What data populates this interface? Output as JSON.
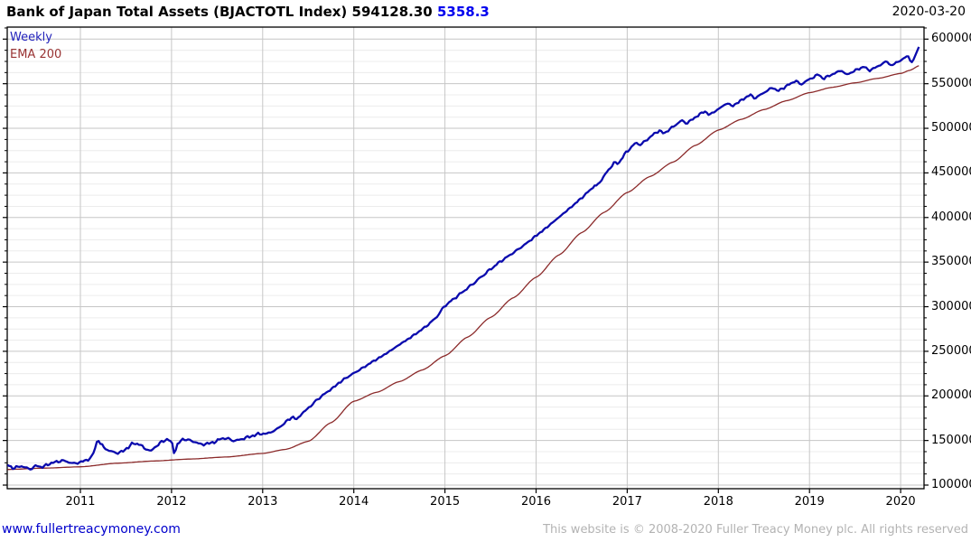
{
  "header": {
    "title": "Bank of Japan Total Assets (BJACTOTL Index)",
    "last_price": "594128.30",
    "change": "5358.3",
    "date": "2020-03-20"
  },
  "legend": {
    "weekly_label": "Weekly",
    "ema_label": "EMA 200"
  },
  "footer": {
    "site": "www.fullertreacymoney.com",
    "copyright": "This website is © 2008-2020 Fuller Treacy Money plc. All rights reserved"
  },
  "chart_data": {
    "type": "line",
    "title": "Bank of Japan Total Assets (BJACTOTL Index)",
    "xlabel": "",
    "ylabel": "",
    "x_ticks": [
      2011,
      2012,
      2013,
      2014,
      2015,
      2016,
      2017,
      2018,
      2019,
      2020
    ],
    "x_range": [
      2010.2,
      2020.26
    ],
    "y_ticks": [
      100000,
      150000,
      200000,
      250000,
      300000,
      350000,
      400000,
      450000,
      500000,
      550000,
      600000
    ],
    "y_range": [
      96000,
      613500
    ],
    "grid": {
      "major_step": 50000,
      "minor_step": 12500,
      "legend_position": "top-left",
      "grid_on": true
    },
    "last_value": 594128.3,
    "change_value": 5358.3,
    "series": [
      {
        "name": "Weekly",
        "color": "#0a0aad",
        "anchors": [
          [
            2010.2,
            123000
          ],
          [
            2010.27,
            118500
          ],
          [
            2010.33,
            121500
          ],
          [
            2010.4,
            119500
          ],
          [
            2010.46,
            118000
          ],
          [
            2010.52,
            122000
          ],
          [
            2010.58,
            120000
          ],
          [
            2010.65,
            123500
          ],
          [
            2010.73,
            126000
          ],
          [
            2010.81,
            127500
          ],
          [
            2010.88,
            125500
          ],
          [
            2010.94,
            124000
          ],
          [
            2011.0,
            126000
          ],
          [
            2011.06,
            127500
          ],
          [
            2011.12,
            131000
          ],
          [
            2011.17,
            143000
          ],
          [
            2011.19,
            152000
          ],
          [
            2011.22,
            146500
          ],
          [
            2011.27,
            141000
          ],
          [
            2011.33,
            138000
          ],
          [
            2011.4,
            136000
          ],
          [
            2011.46,
            137500
          ],
          [
            2011.52,
            142000
          ],
          [
            2011.58,
            147000
          ],
          [
            2011.65,
            145500
          ],
          [
            2011.71,
            141000
          ],
          [
            2011.77,
            138000
          ],
          [
            2011.83,
            143500
          ],
          [
            2011.9,
            149000
          ],
          [
            2011.96,
            151500
          ],
          [
            2012.0,
            148000
          ],
          [
            2012.03,
            136500
          ],
          [
            2012.07,
            146000
          ],
          [
            2012.12,
            151500
          ],
          [
            2012.19,
            150500
          ],
          [
            2012.25,
            148500
          ],
          [
            2012.33,
            145500
          ],
          [
            2012.4,
            146500
          ],
          [
            2012.48,
            148500
          ],
          [
            2012.55,
            152500
          ],
          [
            2012.62,
            152000
          ],
          [
            2012.69,
            149500
          ],
          [
            2012.75,
            151000
          ],
          [
            2012.83,
            153500
          ],
          [
            2012.9,
            155500
          ],
          [
            2012.96,
            157500
          ],
          [
            2013.04,
            157500
          ],
          [
            2013.12,
            160500
          ],
          [
            2013.2,
            166000
          ],
          [
            2013.28,
            173000
          ],
          [
            2013.33,
            176500
          ],
          [
            2013.37,
            173500
          ],
          [
            2013.44,
            181000
          ],
          [
            2013.52,
            188000
          ],
          [
            2013.6,
            196000
          ],
          [
            2013.69,
            203000
          ],
          [
            2013.77,
            209000
          ],
          [
            2013.85,
            215500
          ],
          [
            2013.92,
            220500
          ],
          [
            2014.0,
            225500
          ],
          [
            2014.1,
            231500
          ],
          [
            2014.2,
            238000
          ],
          [
            2014.3,
            244000
          ],
          [
            2014.4,
            250500
          ],
          [
            2014.5,
            257500
          ],
          [
            2014.6,
            264000
          ],
          [
            2014.7,
            271000
          ],
          [
            2014.8,
            278500
          ],
          [
            2014.9,
            287500
          ],
          [
            2015.0,
            301000
          ],
          [
            2015.1,
            309000
          ],
          [
            2015.2,
            317000
          ],
          [
            2015.3,
            325000
          ],
          [
            2015.4,
            333500
          ],
          [
            2015.5,
            342000
          ],
          [
            2015.6,
            350000
          ],
          [
            2015.7,
            357000
          ],
          [
            2015.8,
            364000
          ],
          [
            2015.9,
            371500
          ],
          [
            2016.0,
            379500
          ],
          [
            2016.1,
            387500
          ],
          [
            2016.2,
            396000
          ],
          [
            2016.3,
            404500
          ],
          [
            2016.4,
            413000
          ],
          [
            2016.5,
            422000
          ],
          [
            2016.6,
            431500
          ],
          [
            2016.7,
            441500
          ],
          [
            2016.8,
            452500
          ],
          [
            2016.9,
            463500
          ],
          [
            2017.0,
            474500
          ],
          [
            2017.1,
            481000
          ],
          [
            2017.2,
            487500
          ],
          [
            2017.3,
            492500
          ],
          [
            2017.4,
            497000
          ],
          [
            2017.5,
            501500
          ],
          [
            2017.6,
            506000
          ],
          [
            2017.7,
            510500
          ],
          [
            2017.8,
            514500
          ],
          [
            2017.9,
            518000
          ],
          [
            2018.0,
            521500
          ],
          [
            2018.1,
            525500
          ],
          [
            2018.2,
            529500
          ],
          [
            2018.3,
            533000
          ],
          [
            2018.4,
            536500
          ],
          [
            2018.5,
            540000
          ],
          [
            2018.6,
            543000
          ],
          [
            2018.7,
            546000
          ],
          [
            2018.8,
            549000
          ],
          [
            2018.9,
            552000
          ],
          [
            2019.0,
            555000
          ],
          [
            2019.1,
            557500
          ],
          [
            2019.25,
            560500
          ],
          [
            2019.4,
            563000
          ],
          [
            2019.55,
            565500
          ],
          [
            2019.7,
            568500
          ],
          [
            2019.85,
            572000
          ],
          [
            2020.0,
            576000
          ],
          [
            2020.05,
            579500
          ],
          [
            2020.08,
            581500
          ],
          [
            2020.1,
            576500
          ],
          [
            2020.13,
            573500
          ],
          [
            2020.15,
            579000
          ],
          [
            2020.17,
            584000
          ],
          [
            2020.19,
            588500
          ],
          [
            2020.21,
            594128
          ]
        ]
      },
      {
        "name": "EMA 200",
        "color": "#8b2a2a",
        "anchors": [
          [
            2010.2,
            117500
          ],
          [
            2010.6,
            119000
          ],
          [
            2011.0,
            120500
          ],
          [
            2011.4,
            124500
          ],
          [
            2011.8,
            127000
          ],
          [
            2012.2,
            129200
          ],
          [
            2012.6,
            131500
          ],
          [
            2013.0,
            135500
          ],
          [
            2013.25,
            140000
          ],
          [
            2013.5,
            149000
          ],
          [
            2013.75,
            170000
          ],
          [
            2014.0,
            194000
          ],
          [
            2014.25,
            204000
          ],
          [
            2014.5,
            216000
          ],
          [
            2014.75,
            229000
          ],
          [
            2015.0,
            245000
          ],
          [
            2015.25,
            266000
          ],
          [
            2015.5,
            288000
          ],
          [
            2015.75,
            310000
          ],
          [
            2016.0,
            333000
          ],
          [
            2016.25,
            358000
          ],
          [
            2016.5,
            383000
          ],
          [
            2016.75,
            406000
          ],
          [
            2017.0,
            428000
          ],
          [
            2017.25,
            446000
          ],
          [
            2017.5,
            462000
          ],
          [
            2017.75,
            481000
          ],
          [
            2018.0,
            498000
          ],
          [
            2018.25,
            510000
          ],
          [
            2018.5,
            521000
          ],
          [
            2018.75,
            531000
          ],
          [
            2019.0,
            540000
          ],
          [
            2019.25,
            546000
          ],
          [
            2019.5,
            551000
          ],
          [
            2019.75,
            556000
          ],
          [
            2020.0,
            561500
          ],
          [
            2020.1,
            565000
          ],
          [
            2020.21,
            570500
          ]
        ]
      }
    ]
  }
}
